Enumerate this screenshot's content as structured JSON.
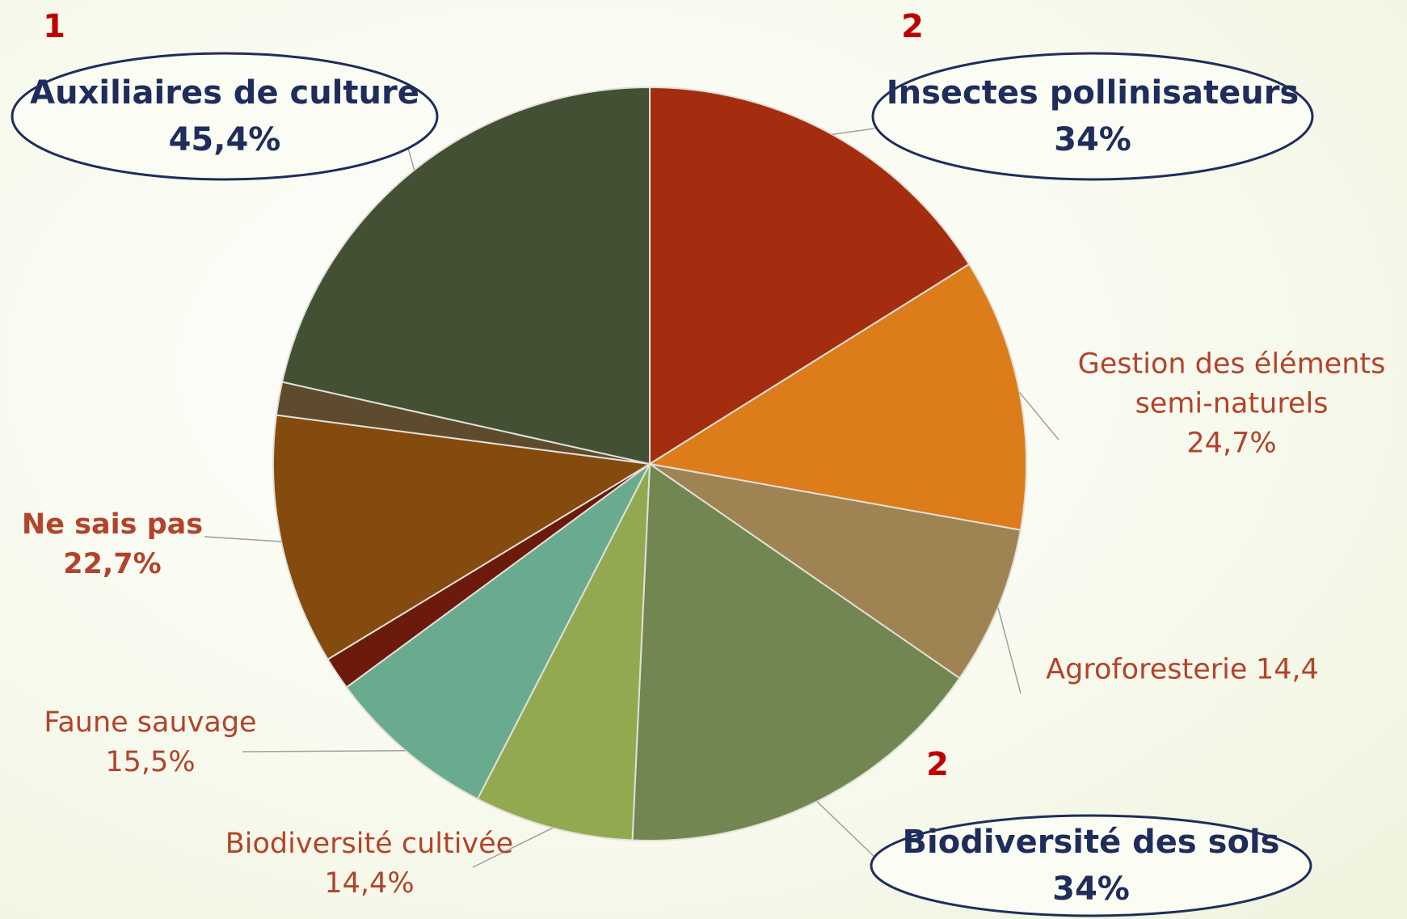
{
  "chart_data": {
    "type": "pie",
    "categories": [
      "Insectes pollinisateurs",
      "Gestion des éléments semi-naturels",
      "Agroforesterie",
      "Biodiversité des sols",
      "Biodiversité cultivée",
      "Faune sauvage",
      null,
      "Ne sais pas",
      null,
      "Auxiliaires de culture"
    ],
    "values": [
      34,
      24.7,
      14.4,
      34,
      14.4,
      15.5,
      3,
      22.7,
      3,
      45.4
    ],
    "value_labels": [
      "34%",
      "24,7%",
      "14,4",
      "34%",
      "14,4%",
      "15,5%",
      null,
      "22,7%",
      null,
      "45,4%"
    ],
    "colors": [
      "#a52d0f",
      "#dc7c1a",
      "#a08352",
      "#728651",
      "#93a94f",
      "#6aab8f",
      "#6b1a0c",
      "#854a0e",
      "#5e4b2e",
      "#435033"
    ],
    "ranks": [
      2,
      null,
      null,
      2,
      null,
      null,
      null,
      null,
      null,
      1
    ]
  }
}
